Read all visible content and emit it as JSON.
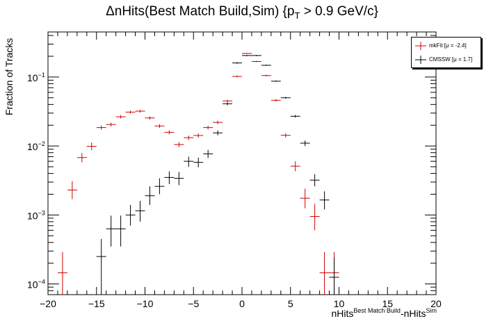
{
  "title": {
    "prefix": "ΔnHits(Best Match Build,Sim) {p",
    "sub": "T",
    "suffix": " > 0.9 GeV/c}"
  },
  "axis_labels": {
    "y": "Fraction of Tracks",
    "x_main": "nHits",
    "x_sup1": "Best Match Build",
    "x_mid": "-nHits",
    "x_sup2": "Sim"
  },
  "legend": [
    {
      "label": "mkFit  [μ = -2.4]",
      "color": "#cc0000"
    },
    {
      "label": "CMSSW  [μ =  1.7]",
      "color": "#000000"
    }
  ],
  "chart_data": {
    "type": "scatter",
    "xlim": [
      -20,
      20
    ],
    "ylim": [
      7e-05,
      0.45
    ],
    "y_scale": "log",
    "x_ticks": [
      -20,
      -15,
      -10,
      -5,
      0,
      5,
      10,
      15,
      20
    ],
    "y_ticks": [
      {
        "value": 0.0001,
        "base": "10",
        "exp": "−4"
      },
      {
        "value": 0.001,
        "base": "10",
        "exp": "−3"
      },
      {
        "value": 0.01,
        "base": "10",
        "exp": "−2"
      },
      {
        "value": 0.1,
        "base": "10",
        "exp": "−1"
      }
    ],
    "legend_position": "top-right",
    "series": [
      {
        "name": "mkFit  [μ = -2.4]",
        "color": "#cc0000",
        "points": [
          {
            "x": -18.5,
            "y": 0.000145,
            "lo": 5e-05,
            "hi": 0.00029
          },
          {
            "x": -17.5,
            "y": 0.0023,
            "lo": 0.0017,
            "hi": 0.0031
          },
          {
            "x": -16.5,
            "y": 0.0068,
            "lo": 0.0058,
            "hi": 0.0079
          },
          {
            "x": -15.5,
            "y": 0.0099,
            "lo": 0.0087,
            "hi": 0.0112
          },
          {
            "x": -14.5,
            "y": 0.0185,
            "lo": 0.0172,
            "hi": 0.0198
          },
          {
            "x": -13.5,
            "y": 0.0205,
            "lo": 0.0192,
            "hi": 0.0218
          },
          {
            "x": -12.5,
            "y": 0.0265,
            "lo": 0.025,
            "hi": 0.028
          },
          {
            "x": -11.5,
            "y": 0.031,
            "lo": 0.0295,
            "hi": 0.0325
          },
          {
            "x": -10.5,
            "y": 0.032,
            "lo": 0.0305,
            "hi": 0.0335
          },
          {
            "x": -9.5,
            "y": 0.0255,
            "lo": 0.0241,
            "hi": 0.0269
          },
          {
            "x": -8.5,
            "y": 0.0195,
            "lo": 0.0183,
            "hi": 0.0207
          },
          {
            "x": -7.5,
            "y": 0.0158,
            "lo": 0.0147,
            "hi": 0.0169
          },
          {
            "x": -6.5,
            "y": 0.0105,
            "lo": 0.0096,
            "hi": 0.0114
          },
          {
            "x": -5.5,
            "y": 0.0132,
            "lo": 0.0122,
            "hi": 0.0142
          },
          {
            "x": -4.5,
            "y": 0.0142,
            "lo": 0.0132,
            "hi": 0.0152
          },
          {
            "x": -3.5,
            "y": 0.0185,
            "lo": 0.0173,
            "hi": 0.0197
          },
          {
            "x": -2.5,
            "y": 0.022,
            "lo": 0.0207,
            "hi": 0.0233
          },
          {
            "x": -1.5,
            "y": 0.045,
            "lo": 0.0432,
            "hi": 0.0468
          },
          {
            "x": -0.5,
            "y": 0.102,
            "lo": 0.099,
            "hi": 0.105
          },
          {
            "x": 0.5,
            "y": 0.22,
            "lo": 0.216,
            "hi": 0.224
          },
          {
            "x": 1.5,
            "y": 0.168,
            "lo": 0.164,
            "hi": 0.172
          },
          {
            "x": 2.5,
            "y": 0.105,
            "lo": 0.102,
            "hi": 0.108
          },
          {
            "x": 3.5,
            "y": 0.046,
            "lo": 0.0442,
            "hi": 0.0478
          },
          {
            "x": 4.5,
            "y": 0.0143,
            "lo": 0.0133,
            "hi": 0.0153
          },
          {
            "x": 5.5,
            "y": 0.0051,
            "lo": 0.0043,
            "hi": 0.006
          },
          {
            "x": 6.5,
            "y": 0.00175,
            "lo": 0.00125,
            "hi": 0.0024
          },
          {
            "x": 7.5,
            "y": 0.00095,
            "lo": 0.0006,
            "hi": 0.00145
          },
          {
            "x": 8.5,
            "y": 0.000145,
            "lo": 5e-05,
            "hi": 0.00029
          },
          {
            "x": 9.5,
            "y": 0.000145,
            "lo": 5e-05,
            "hi": 0.00029
          }
        ]
      },
      {
        "name": "CMSSW  [μ =  1.7]",
        "color": "#000000",
        "points": [
          {
            "x": -14.5,
            "y": 0.00025,
            "lo": 7e-05,
            "hi": 0.00045
          },
          {
            "x": -13.5,
            "y": 0.00063,
            "lo": 0.00035,
            "hi": 0.00098
          },
          {
            "x": -12.5,
            "y": 0.00063,
            "lo": 0.00035,
            "hi": 0.00098
          },
          {
            "x": -11.5,
            "y": 0.001,
            "lo": 0.0007,
            "hi": 0.0014
          },
          {
            "x": -10.5,
            "y": 0.00115,
            "lo": 0.0008,
            "hi": 0.0016
          },
          {
            "x": -9.5,
            "y": 0.0019,
            "lo": 0.0014,
            "hi": 0.0026
          },
          {
            "x": -8.5,
            "y": 0.0026,
            "lo": 0.002,
            "hi": 0.0034
          },
          {
            "x": -7.5,
            "y": 0.0035,
            "lo": 0.0028,
            "hi": 0.0043
          },
          {
            "x": -6.5,
            "y": 0.0034,
            "lo": 0.0027,
            "hi": 0.0042
          },
          {
            "x": -5.5,
            "y": 0.006,
            "lo": 0.005,
            "hi": 0.007
          },
          {
            "x": -4.5,
            "y": 0.0058,
            "lo": 0.0049,
            "hi": 0.0068
          },
          {
            "x": -3.5,
            "y": 0.0077,
            "lo": 0.0067,
            "hi": 0.0088
          },
          {
            "x": -2.5,
            "y": 0.0155,
            "lo": 0.0143,
            "hi": 0.0168
          },
          {
            "x": -1.5,
            "y": 0.041,
            "lo": 0.039,
            "hi": 0.043
          },
          {
            "x": -0.5,
            "y": 0.16,
            "lo": 0.156,
            "hi": 0.164
          },
          {
            "x": 0.5,
            "y": 0.205,
            "lo": 0.201,
            "hi": 0.209
          },
          {
            "x": 1.5,
            "y": 0.205,
            "lo": 0.201,
            "hi": 0.209
          },
          {
            "x": 2.5,
            "y": 0.148,
            "lo": 0.145,
            "hi": 0.151
          },
          {
            "x": 3.5,
            "y": 0.087,
            "lo": 0.085,
            "hi": 0.089
          },
          {
            "x": 4.5,
            "y": 0.05,
            "lo": 0.0485,
            "hi": 0.0515
          },
          {
            "x": 5.5,
            "y": 0.027,
            "lo": 0.0258,
            "hi": 0.0282
          },
          {
            "x": 6.5,
            "y": 0.011,
            "lo": 0.01,
            "hi": 0.012
          },
          {
            "x": 7.5,
            "y": 0.0032,
            "lo": 0.0026,
            "hi": 0.0039
          },
          {
            "x": 8.5,
            "y": 0.00165,
            "lo": 0.0012,
            "hi": 0.0022
          },
          {
            "x": 9.5,
            "y": 0.000125,
            "lo": 6e-05,
            "hi": 0.00024
          }
        ]
      }
    ]
  }
}
